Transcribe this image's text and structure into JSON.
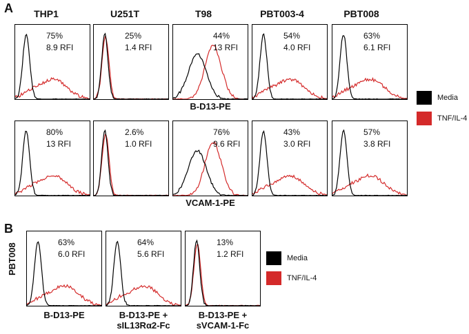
{
  "colors": {
    "media": "#000000",
    "tnf": "#d42a2a"
  },
  "panel_a": {
    "letter": "A",
    "columns": [
      "THP1",
      "U251T",
      "T98",
      "PBT003-4",
      "PBT008"
    ],
    "rows": [
      {
        "caption": "B-D13-PE",
        "plots": [
          {
            "pct": "75%",
            "rfi": "8.9 RFI",
            "shape": "broad"
          },
          {
            "pct": "25%",
            "rfi": "1.4 RFI",
            "shape": "overlap"
          },
          {
            "pct": "44%",
            "rfi": "13 RFI",
            "shape": "shift"
          },
          {
            "pct": "54%",
            "rfi": "4.0 RFI",
            "shape": "broad"
          },
          {
            "pct": "63%",
            "rfi": "6.1 RFI",
            "shape": "broad"
          }
        ]
      },
      {
        "caption": "VCAM-1-PE",
        "plots": [
          {
            "pct": "80%",
            "rfi": "13 RFI",
            "shape": "broad"
          },
          {
            "pct": "2.6%",
            "rfi": "1.0 RFI",
            "shape": "overlap"
          },
          {
            "pct": "76%",
            "rfi": "9.6 RFI",
            "shape": "shift"
          },
          {
            "pct": "43%",
            "rfi": "3.0 RFI",
            "shape": "broad"
          },
          {
            "pct": "57%",
            "rfi": "3.8 RFI",
            "shape": "broad"
          }
        ]
      }
    ],
    "legend": [
      {
        "label": "Media",
        "color": "#000000"
      },
      {
        "label": "TNF/IL-4",
        "color": "#d42a2a"
      }
    ]
  },
  "panel_b": {
    "letter": "B",
    "row_label": "PBT008",
    "plots": [
      {
        "pct": "63%",
        "rfi": "6.0 RFI",
        "shape": "broad",
        "caption1": "B-D13-PE",
        "caption2": ""
      },
      {
        "pct": "64%",
        "rfi": "5.6 RFI",
        "shape": "broad",
        "caption1": "B-D13-PE +",
        "caption2": "sIL13Rα2-Fc"
      },
      {
        "pct": "13%",
        "rfi": "1.2 RFI",
        "shape": "overlap",
        "caption1": "B-D13-PE +",
        "caption2": "sVCAM-1-Fc"
      }
    ],
    "legend": [
      {
        "label": "Media",
        "color": "#000000"
      },
      {
        "label": "TNF/IL-4",
        "color": "#d42a2a"
      }
    ]
  }
}
